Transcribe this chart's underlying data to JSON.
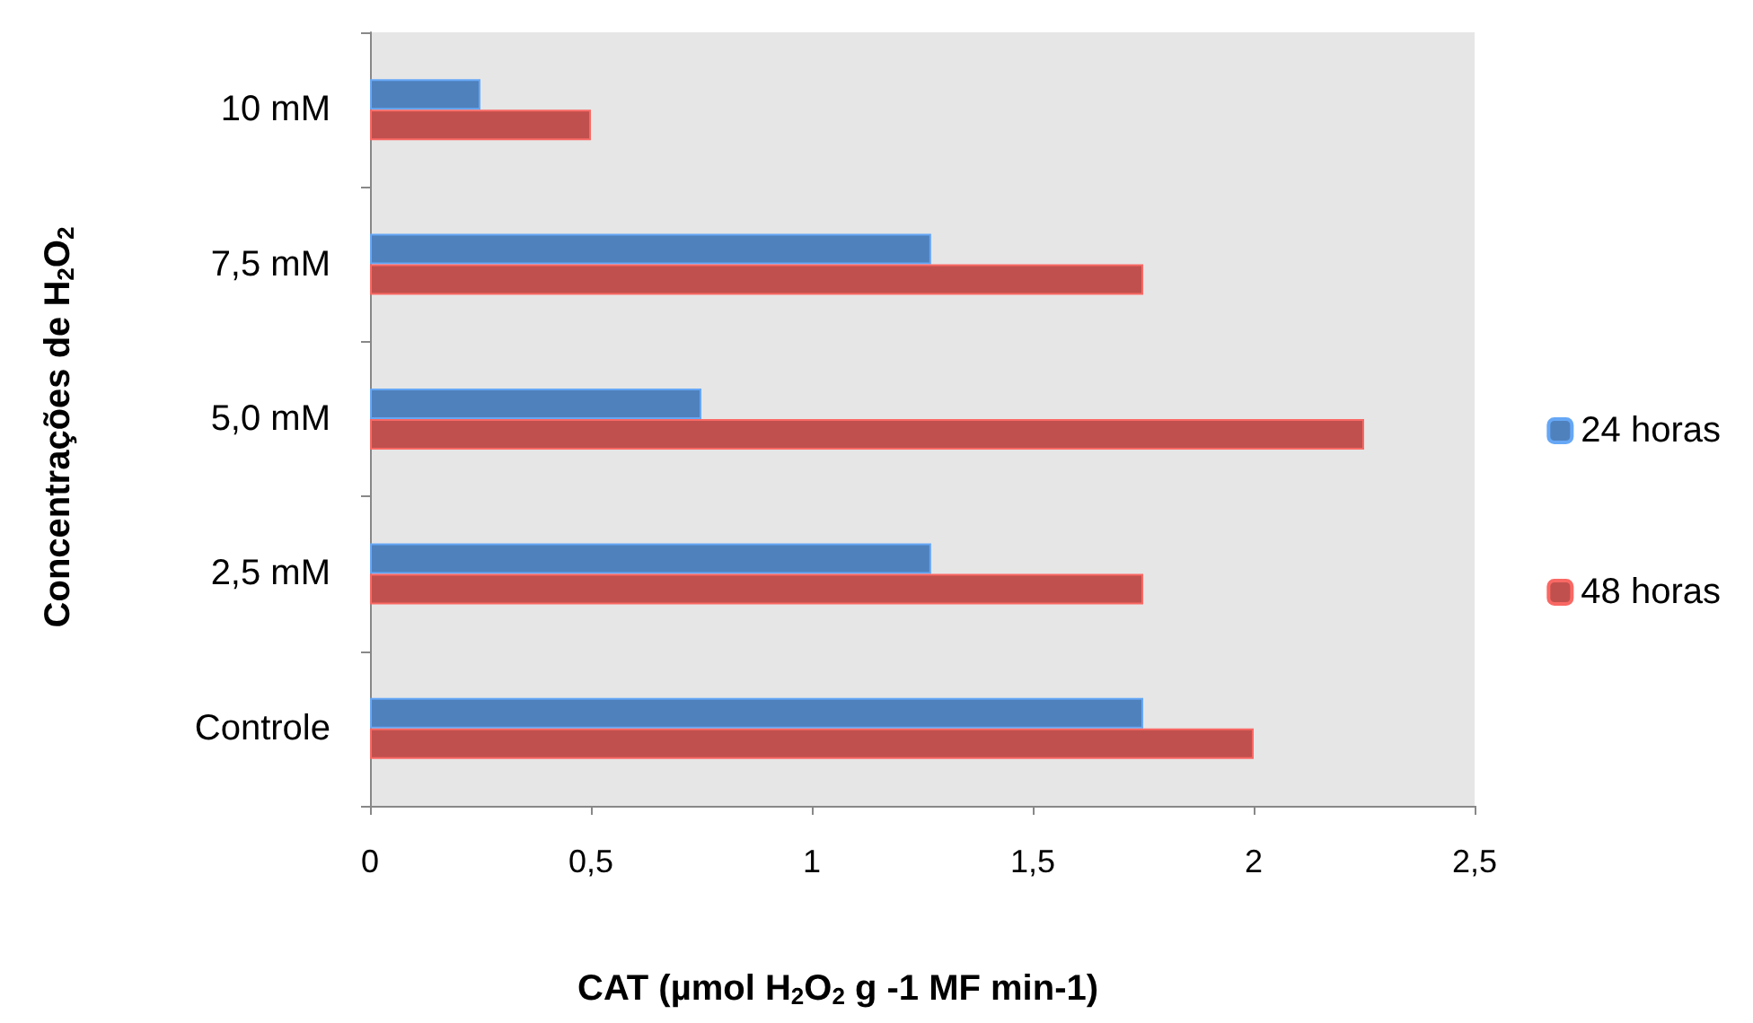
{
  "chart_data": {
    "type": "bar",
    "orientation": "horizontal",
    "xlabel": "CAT (µmol H$_{2}$O$_{2}$ g -1 MF min-1)",
    "ylabel": "Concentrações de H$_{2}$O$_{2}$",
    "categories": [
      "10 mM",
      "7,5 mM",
      "5,0 mM",
      "2,5 mM",
      "Controle"
    ],
    "series": [
      {
        "name": "24 horas",
        "color": "#4f81bd",
        "values": [
          0.25,
          1.27,
          0.75,
          1.27,
          1.75
        ]
      },
      {
        "name": "48 horas",
        "color": "#c0504d",
        "values": [
          0.5,
          1.75,
          2.25,
          1.75,
          2.0
        ]
      }
    ],
    "xlim": [
      0,
      2.5
    ],
    "xticks": [
      0,
      {
        "value": 0.5,
        "label": "0,5"
      },
      1,
      {
        "value": 1.5,
        "label": "1,5"
      },
      2,
      {
        "value": 2.5,
        "label": "2,5"
      }
    ],
    "grid": false,
    "legend": "right"
  }
}
